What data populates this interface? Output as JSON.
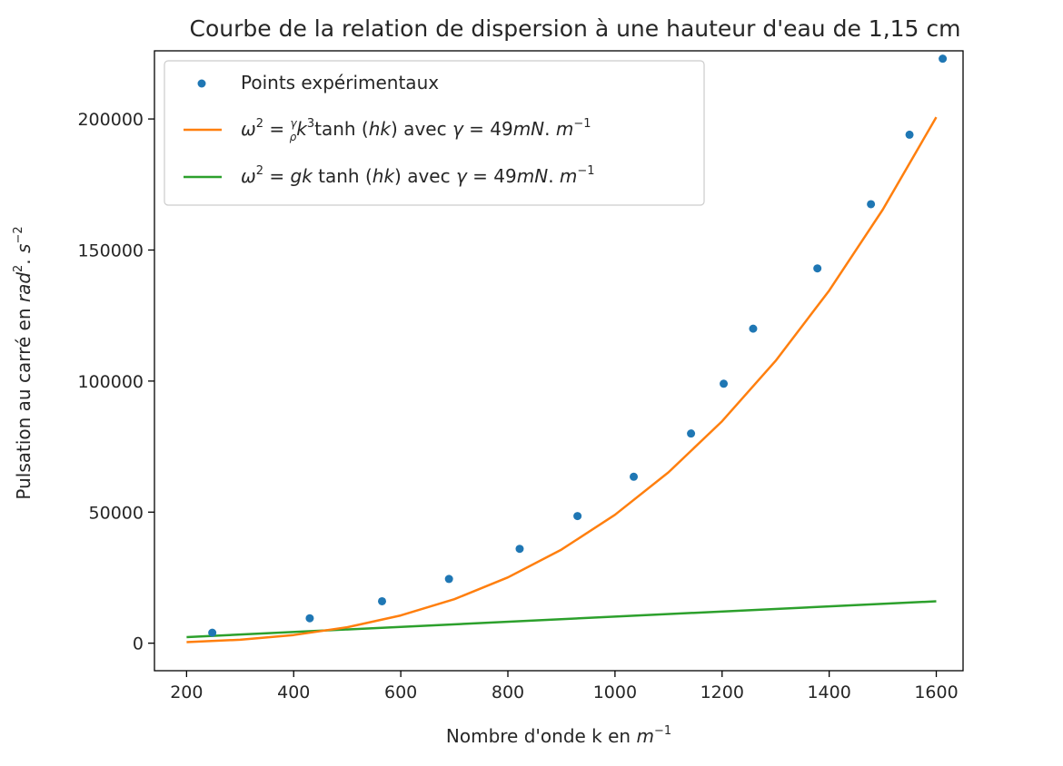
{
  "chart_data": {
    "type": "scatter",
    "title": "Courbe de la relation de dispersion à une hauteur d'eau de 1,15 cm",
    "xlabel": "Nombre d'onde k en ",
    "xlabel_unit": "m",
    "xlabel_exp": "−1",
    "ylabel": "Pulsation au carré en ",
    "ylabel_unit": "rad",
    "ylabel_unit2": "s",
    "ylabel_exp1": "2",
    "ylabel_exp2": "−2",
    "xlim": [
      140,
      1650
    ],
    "ylim": [
      -10500,
      226000
    ],
    "x_ticks": [
      200,
      400,
      600,
      800,
      1000,
      1200,
      1400,
      1600
    ],
    "y_ticks": [
      0,
      50000,
      100000,
      150000,
      200000
    ],
    "grid": false,
    "legend_placement": "top-left",
    "series": [
      {
        "name": "Points expérimentaux",
        "kind": "scatter",
        "color": "#1f77b4",
        "x": [
          248,
          430,
          565,
          690,
          822,
          930,
          1035,
          1142,
          1203,
          1258,
          1378,
          1478,
          1550,
          1612
        ],
        "y": [
          4000,
          9500,
          16000,
          24500,
          36000,
          48500,
          63500,
          80000,
          99000,
          120000,
          143000,
          167500,
          194000,
          223000
        ]
      },
      {
        "name": "ω² = (γ/ρ)k³tanh(hk) avec γ = 49mN.m⁻¹",
        "kind": "line",
        "color": "#ff7f0e",
        "x": [
          200,
          300,
          400,
          500,
          600,
          700,
          800,
          900,
          1000,
          1100,
          1200,
          1300,
          1400,
          1500,
          1600
        ],
        "y": [
          400,
          1300,
          3100,
          6100,
          10600,
          16800,
          25100,
          35700,
          49000,
          65200,
          84700,
          107700,
          134500,
          165400,
          200700
        ]
      },
      {
        "name": "ω² = gk tanh(hk) avec γ = 49mN.m⁻¹",
        "kind": "line",
        "color": "#2ca02c",
        "x": [
          200,
          1600
        ],
        "y": [
          2300,
          16000
        ]
      }
    ]
  },
  "legend": {
    "item1": "Points expérimentaux",
    "item2": {
      "omega": "ω",
      "sq": "2",
      "eq": " = ",
      "gamma": "γ",
      "rho": "ρ",
      "k": "k",
      "cube": "3",
      "tanh": "tanh",
      "arg_open": " (",
      "hk": "hk",
      "arg_close": ")",
      "avec": " avec  ",
      "gamma2": "γ",
      "eq2": " = 49",
      "mN": "mN",
      "dot": ". ",
      "m": "m",
      "exp": "−1"
    },
    "item3": {
      "omega": "ω",
      "sq": "2",
      "eq": " = ",
      "gk": "gk",
      "tanh": " tanh",
      "arg_open": " (",
      "hk": "hk",
      "arg_close": ")",
      "avec": "  avec ",
      "gamma": "γ",
      "eq2": " = 49",
      "mN": "mN",
      "dot": ". ",
      "m": "m",
      "exp": "−1"
    }
  }
}
